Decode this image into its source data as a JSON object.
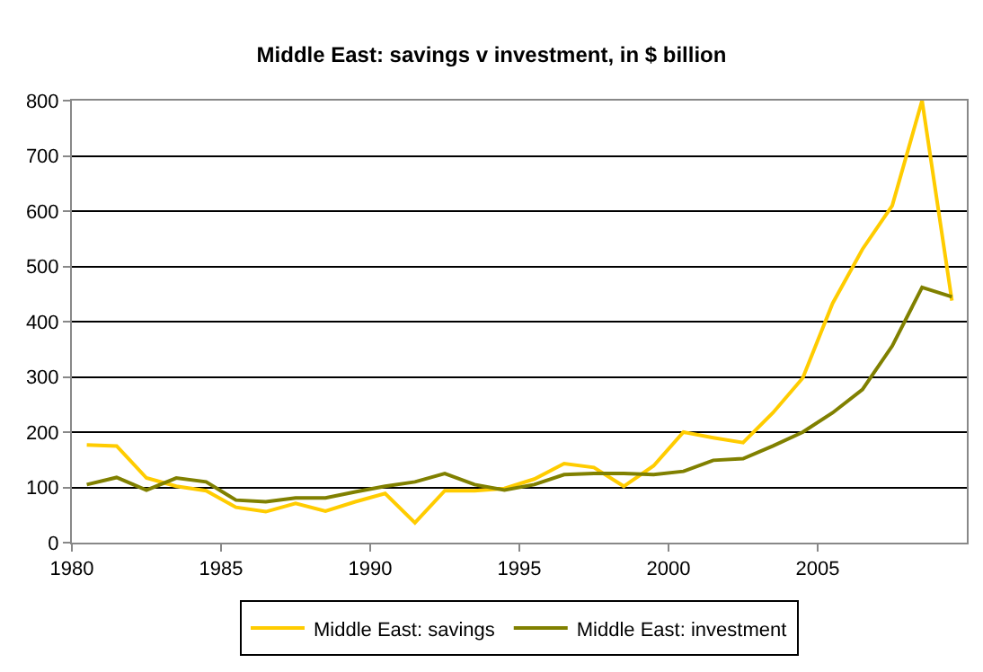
{
  "chart_data": {
    "type": "line",
    "title": "Middle East: savings v investment, in $ billion",
    "x": [
      1980.5,
      1981.5,
      1982.5,
      1983.5,
      1984.5,
      1985.5,
      1986.5,
      1987.5,
      1988.5,
      1989.5,
      1990.5,
      1991.5,
      1992.5,
      1993.5,
      1994.5,
      1995.5,
      1996.5,
      1997.5,
      1998.5,
      1999.5,
      2000.5,
      2001.5,
      2002.5,
      2003.5,
      2004.5,
      2005.5,
      2006.5,
      2007.5,
      2008.5,
      2009.5
    ],
    "series": [
      {
        "name": "Middle East: savings",
        "color": "#ffcc00",
        "values": [
          177,
          175,
          117,
          102,
          94,
          64,
          56,
          71,
          57,
          74,
          89,
          36,
          94,
          94,
          98,
          115,
          143,
          136,
          102,
          139,
          200,
          190,
          181,
          235,
          298,
          433,
          531,
          610,
          800,
          438
        ]
      },
      {
        "name": "Middle East: investment",
        "color": "#808000",
        "values": [
          105,
          118,
          95,
          117,
          110,
          77,
          74,
          81,
          81,
          92,
          102,
          110,
          125,
          105,
          95,
          105,
          123,
          125,
          125,
          123,
          129,
          149,
          152,
          175,
          200,
          235,
          277,
          356,
          462,
          445
        ]
      }
    ],
    "xlim": [
      1980,
      2010
    ],
    "xticks": [
      1980,
      1985,
      1990,
      1995,
      2000,
      2005
    ],
    "ylim": [
      0,
      800
    ],
    "yticks": [
      0,
      100,
      200,
      300,
      400,
      500,
      600,
      700,
      800
    ],
    "grid": "y",
    "legend": "bottom",
    "marker": "none",
    "line_style": "solid"
  }
}
